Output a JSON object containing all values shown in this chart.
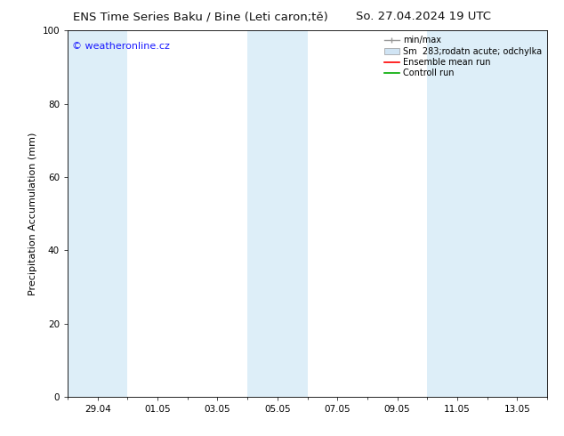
{
  "title_left": "ENS Time Series Baku / Bine (Leti caron;tě)",
  "title_right": "So. 27.04.2024 19 UTC",
  "ylabel": "Precipitation Accumulation (mm)",
  "ylim": [
    0,
    100
  ],
  "yticks": [
    0,
    20,
    40,
    60,
    80,
    100
  ],
  "xlim": [
    0,
    16
  ],
  "x_tick_labels": [
    "29.04",
    "01.05",
    "03.05",
    "05.05",
    "07.05",
    "09.05",
    "11.05",
    "13.05"
  ],
  "x_tick_positions": [
    1,
    3,
    5,
    7,
    9,
    11,
    13,
    15
  ],
  "bg_color": "#ffffff",
  "plot_bg_color": "#ffffff",
  "shaded_bands": [
    {
      "x_start": 0.0,
      "x_end": 2.0,
      "color": "#ddeef8"
    },
    {
      "x_start": 6.0,
      "x_end": 8.0,
      "color": "#ddeef8"
    },
    {
      "x_start": 12.0,
      "x_end": 16.0,
      "color": "#ddeef8"
    }
  ],
  "watermark_text": "© weatheronline.cz",
  "watermark_color": "#1a1aff",
  "watermark_fontsize": 8,
  "legend_labels": [
    "min/max",
    "Sm  283;rodatn acute; odchylka",
    "Ensemble mean run",
    "Controll run"
  ],
  "legend_handle_colors": [
    "#aaaaaa",
    "#d0e4f4",
    "#ff0000",
    "#00aa00"
  ],
  "title_fontsize": 9.5,
  "axis_label_fontsize": 8,
  "tick_fontsize": 7.5,
  "legend_fontsize": 7
}
